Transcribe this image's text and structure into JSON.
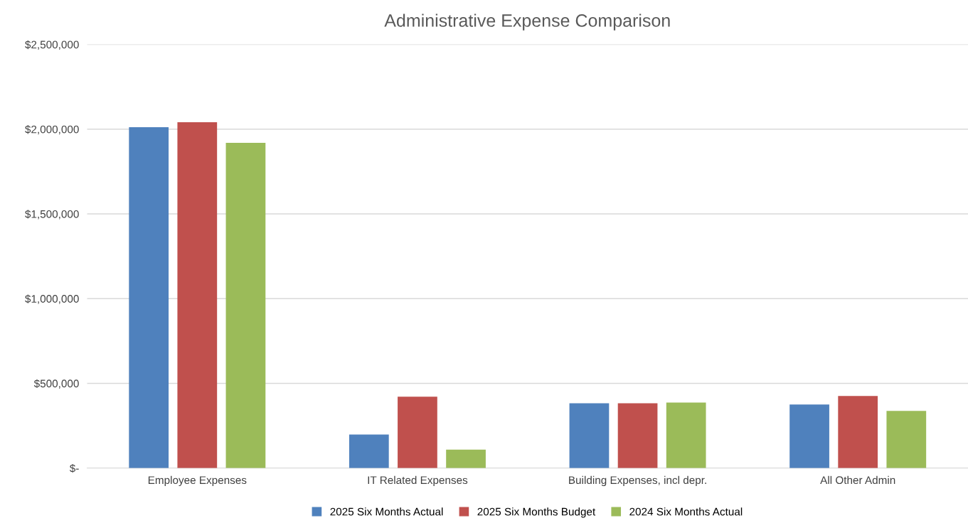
{
  "chart_data": {
    "type": "bar",
    "title": "Administrative Expense Comparison",
    "categories": [
      "Employee Expenses",
      "IT Related Expenses",
      "Building Expenses, incl depr.",
      "All Other Admin"
    ],
    "series": [
      {
        "name": "2025 Six Months Actual",
        "color": "#4f81bd",
        "values": [
          2012000,
          198000,
          383000,
          375000
        ]
      },
      {
        "name": "2025 Six Months Budget",
        "color": "#c0504d",
        "values": [
          2041000,
          421000,
          383000,
          425000
        ]
      },
      {
        "name": "2024 Six Months Actual",
        "color": "#9bbb59",
        "values": [
          1919000,
          109000,
          387000,
          337000
        ]
      }
    ],
    "ylim": [
      0,
      2500000
    ],
    "yticks": [
      {
        "value": 0,
        "label": "$-"
      },
      {
        "value": 500000,
        "label": "$500,000"
      },
      {
        "value": 1000000,
        "label": "$1,000,000"
      },
      {
        "value": 1500000,
        "label": "$1,500,000"
      },
      {
        "value": 2000000,
        "label": "$2,000,000"
      },
      {
        "value": 2500000,
        "label": "$2,500,000"
      }
    ],
    "grid": "y",
    "legend": "bottom"
  }
}
